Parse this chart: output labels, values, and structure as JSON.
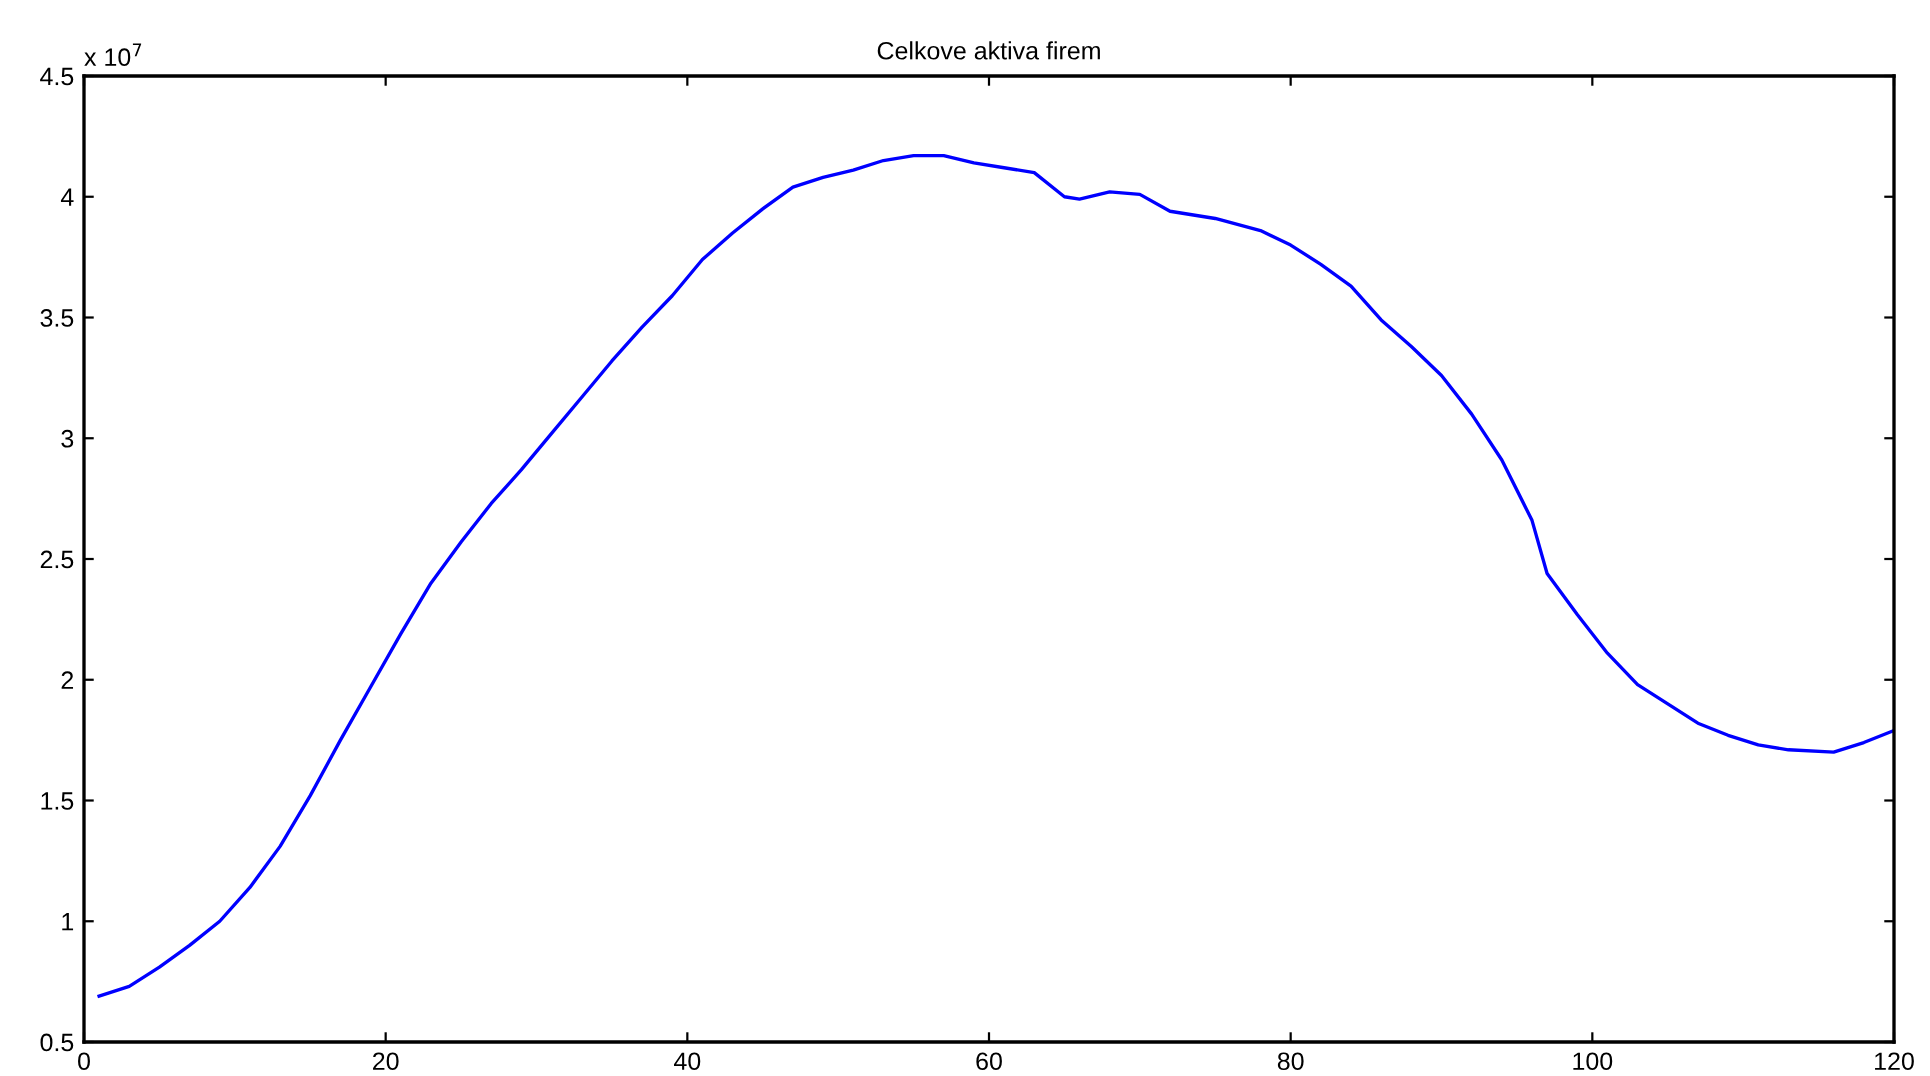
{
  "chart_data": {
    "type": "line",
    "title": "Celkove aktiva firem",
    "annotations": [
      "x 10$^{7}$"
    ],
    "xlim": [
      0,
      120
    ],
    "xticks": [
      0,
      20,
      40,
      60,
      80,
      100,
      120
    ],
    "ylim": [
      0.5,
      4.5
    ],
    "yticks": [
      0.5,
      1,
      1.5,
      2,
      2.5,
      3,
      3.5,
      4,
      4.5
    ],
    "grid": false,
    "marker": "none",
    "line_style": "solid",
    "series": [
      {
        "color": "#0000ff",
        "x": [
          1,
          3,
          5,
          7,
          9,
          11,
          13,
          15,
          17,
          19,
          21,
          23,
          25,
          27,
          29,
          31,
          33,
          35,
          37,
          39,
          41,
          43,
          45,
          47,
          49,
          51,
          53,
          55,
          57,
          59,
          61,
          63,
          65,
          66,
          68,
          70,
          72,
          75,
          78,
          80,
          82,
          84,
          86,
          88,
          90,
          92,
          94,
          96,
          97,
          99,
          101,
          103,
          105,
          107,
          109,
          111,
          113,
          116,
          118,
          120
        ],
        "values": [
          0.69,
          0.73,
          0.81,
          0.9,
          1.0,
          1.14,
          1.31,
          1.52,
          1.75,
          1.97,
          2.19,
          2.4,
          2.57,
          2.73,
          2.87,
          3.02,
          3.17,
          3.32,
          3.46,
          3.59,
          3.74,
          3.85,
          3.95,
          4.04,
          4.08,
          4.11,
          4.15,
          4.17,
          4.17,
          4.14,
          4.12,
          4.1,
          4.0,
          3.99,
          4.02,
          4.01,
          3.94,
          3.91,
          3.86,
          3.8,
          3.72,
          3.63,
          3.49,
          3.38,
          3.26,
          3.1,
          2.91,
          2.66,
          2.44,
          2.27,
          2.11,
          1.98,
          1.9,
          1.82,
          1.77,
          1.73,
          1.71,
          1.7,
          1.74,
          1.79
        ]
      }
    ]
  }
}
